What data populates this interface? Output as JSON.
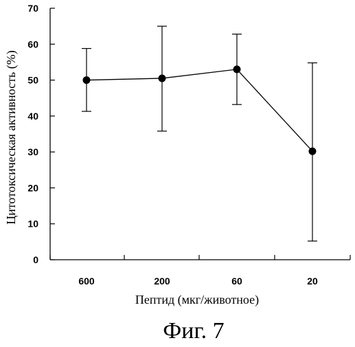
{
  "chart_data": {
    "type": "line",
    "categories": [
      "600",
      "200",
      "60",
      "20"
    ],
    "series": [
      {
        "values": [
          50.0,
          50.5,
          53.0,
          30.2
        ],
        "error_upper": [
          58.8,
          65.0,
          62.8,
          54.8
        ],
        "error_lower": [
          41.3,
          35.8,
          43.2,
          5.2
        ]
      }
    ],
    "ylim": [
      0,
      70
    ],
    "yticks": [
      "0",
      "10",
      "20",
      "30",
      "40",
      "50",
      "60",
      "70"
    ],
    "ylabel": "Цитотоксическая активность (%)",
    "xlabel": "Пептид (мкг/животное)",
    "grid": false,
    "marker": "filled-circle",
    "color": "#000000"
  },
  "caption": "Фиг. 7"
}
